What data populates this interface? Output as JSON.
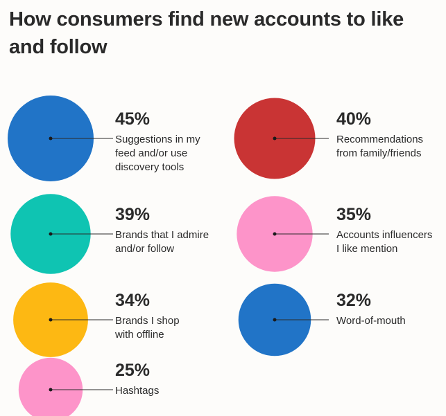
{
  "title": "How consumers find new accounts to like and follow",
  "chart_data": {
    "type": "bubble",
    "unit": "%",
    "items": [
      {
        "value": 45,
        "pct_label": "45%",
        "label_lines": [
          "Suggestions in my",
          "feed and/or use",
          "discovery tools"
        ],
        "color": "#2174c7"
      },
      {
        "value": 40,
        "pct_label": "40%",
        "label_lines": [
          "Recommendations",
          "from family/friends"
        ],
        "color": "#c93434"
      },
      {
        "value": 39,
        "pct_label": "39%",
        "label_lines": [
          "Brands that I admire",
          "and/or follow"
        ],
        "color": "#0fc4b2"
      },
      {
        "value": 35,
        "pct_label": "35%",
        "label_lines": [
          "Accounts influencers",
          "I like mention"
        ],
        "color": "#fd94c9"
      },
      {
        "value": 34,
        "pct_label": "34%",
        "label_lines": [
          "Brands I shop",
          "with offline"
        ],
        "color": "#fdb813"
      },
      {
        "value": 32,
        "pct_label": "32%",
        "label_lines": [
          "Word-of-mouth"
        ],
        "color": "#2174c7"
      },
      {
        "value": 25,
        "pct_label": "25%",
        "label_lines": [
          "Hashtags"
        ],
        "color": "#fd94c9"
      }
    ]
  }
}
